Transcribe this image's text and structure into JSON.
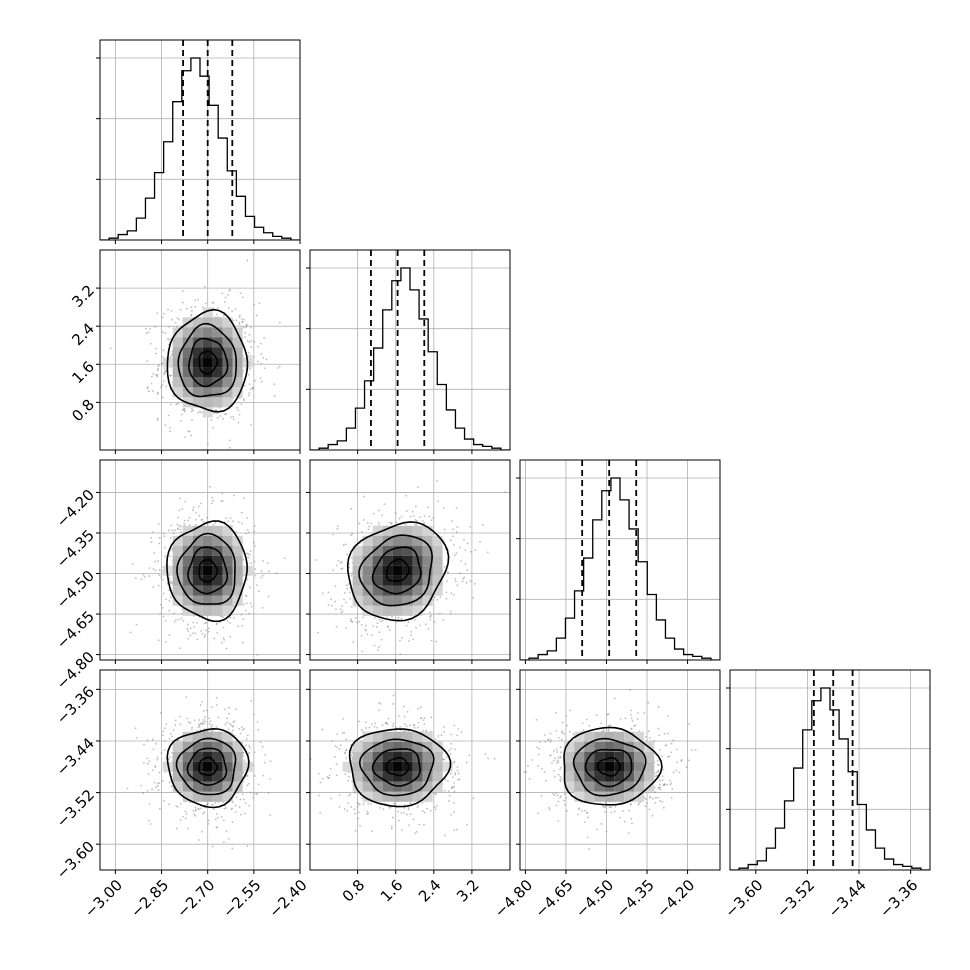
{
  "chart_data": {
    "type": "corner",
    "n_params": 4,
    "title": "",
    "axis_labels": [
      "",
      "",
      "",
      ""
    ],
    "ranges": [
      [
        -3.05,
        -2.4
      ],
      [
        -0.2,
        4.0
      ],
      [
        -4.82,
        -4.08
      ],
      [
        -3.64,
        -3.33
      ]
    ],
    "ticks": [
      [
        "−3.00",
        "−2.85",
        "−2.70",
        "−2.55",
        "−2.40"
      ],
      [
        "0.8",
        "1.6",
        "2.4",
        "3.2"
      ],
      [
        "−4.80",
        "−4.65",
        "−4.50",
        "−4.35",
        "−4.20"
      ],
      [
        "−3.60",
        "−3.52",
        "−3.44",
        "−3.36"
      ]
    ],
    "tick_values": [
      [
        -3.0,
        -2.85,
        -2.7,
        -2.55,
        -2.4
      ],
      [
        0.8,
        1.6,
        2.4,
        3.2
      ],
      [
        -4.8,
        -4.65,
        -4.5,
        -4.35,
        -4.2
      ],
      [
        -3.6,
        -3.52,
        -3.44,
        -3.36
      ]
    ],
    "quantiles": [
      [
        -2.78,
        -2.7,
        -2.62
      ],
      [
        1.08,
        1.64,
        2.2
      ],
      [
        -4.59,
        -4.49,
        -4.39
      ],
      [
        -3.51,
        -3.48,
        -3.45
      ]
    ],
    "histograms": [
      {
        "bins": [
          -3.05,
          -2.4
        ],
        "counts": [
          0,
          1,
          3,
          5,
          12,
          23,
          37,
          54,
          76,
          93,
          100,
          90,
          74,
          56,
          38,
          24,
          13,
          7,
          4,
          2,
          1,
          0
        ]
      },
      {
        "bins": [
          -0.2,
          4.0
        ],
        "counts": [
          0,
          1,
          3,
          5,
          12,
          23,
          38,
          56,
          77,
          93,
          100,
          88,
          72,
          54,
          36,
          22,
          12,
          6,
          3,
          2,
          1,
          0
        ]
      },
      {
        "bins": [
          -4.82,
          -4.08
        ],
        "counts": [
          0,
          1,
          3,
          5,
          12,
          23,
          38,
          56,
          77,
          93,
          100,
          88,
          72,
          54,
          36,
          22,
          12,
          6,
          3,
          2,
          1,
          0
        ]
      },
      {
        "bins": [
          -3.64,
          -3.33
        ],
        "counts": [
          0,
          1,
          3,
          5,
          12,
          23,
          38,
          56,
          77,
          93,
          100,
          88,
          72,
          54,
          36,
          22,
          12,
          6,
          3,
          2,
          1,
          0
        ]
      }
    ],
    "means": [
      -2.7,
      1.64,
      -4.49,
      -3.48
    ],
    "sigmas": [
      0.065,
      0.52,
      0.09,
      0.03
    ],
    "correlations": [
      [
        1,
        0,
        0,
        0
      ],
      [
        0,
        1,
        0.15,
        0
      ],
      [
        0,
        0.15,
        1,
        0
      ],
      [
        0,
        0,
        0,
        1
      ]
    ],
    "grid": true,
    "colors": {
      "line": "#000000",
      "grid": "#b0b0b0",
      "points": "#888888"
    }
  }
}
